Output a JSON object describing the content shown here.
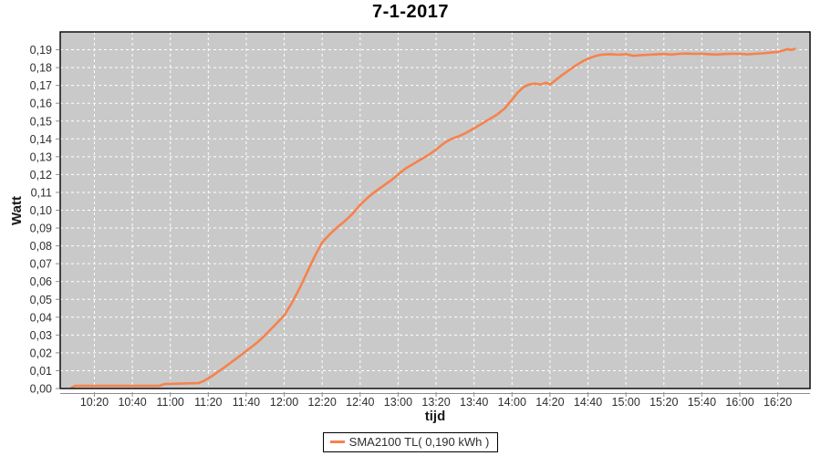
{
  "chart_data": {
    "type": "line",
    "title": "7-1-2017",
    "xlabel": "tijd",
    "ylabel": "Watt",
    "grid": true,
    "legend_position": "bottom",
    "x_ticks": [
      "10:20",
      "10:40",
      "11:00",
      "11:20",
      "11:40",
      "12:00",
      "12:20",
      "12:40",
      "13:00",
      "13:20",
      "13:40",
      "14:00",
      "14:20",
      "14:40",
      "15:00",
      "15:20",
      "15:40",
      "16:00",
      "16:20"
    ],
    "y_ticks": [
      "0,00",
      "0,01",
      "0,02",
      "0,03",
      "0,04",
      "0,05",
      "0,06",
      "0,07",
      "0,08",
      "0,09",
      "0,10",
      "0,11",
      "0,12",
      "0,13",
      "0,14",
      "0,15",
      "0,16",
      "0,17",
      "0,18",
      "0,19"
    ],
    "x_range": [
      "10:02",
      "16:37"
    ],
    "y_range": [
      0,
      0.2
    ],
    "series": [
      {
        "name": "SMA2100 TL( 0,190 kWh )",
        "color": "#F6824C",
        "points": [
          [
            "10:08",
            0.0005
          ],
          [
            "10:10",
            0.0015
          ],
          [
            "10:54",
            0.0015
          ],
          [
            "10:57",
            0.0025
          ],
          [
            "11:15",
            0.003
          ],
          [
            "11:18",
            0.0045
          ],
          [
            "11:22",
            0.007
          ],
          [
            "11:26",
            0.01
          ],
          [
            "11:30",
            0.013
          ],
          [
            "11:35",
            0.017
          ],
          [
            "11:40",
            0.021
          ],
          [
            "11:43",
            0.0235
          ],
          [
            "11:46",
            0.026
          ],
          [
            "11:50",
            0.03
          ],
          [
            "11:55",
            0.0355
          ],
          [
            "12:00",
            0.041
          ],
          [
            "12:04",
            0.048
          ],
          [
            "12:08",
            0.056
          ],
          [
            "12:12",
            0.065
          ],
          [
            "12:16",
            0.074
          ],
          [
            "12:20",
            0.082
          ],
          [
            "12:24",
            0.0865
          ],
          [
            "12:28",
            0.0905
          ],
          [
            "12:32",
            0.094
          ],
          [
            "12:36",
            0.098
          ],
          [
            "12:40",
            0.103
          ],
          [
            "12:44",
            0.107
          ],
          [
            "12:48",
            0.1105
          ],
          [
            "12:52",
            0.1135
          ],
          [
            "12:56",
            0.1165
          ],
          [
            "13:00",
            0.12
          ],
          [
            "13:04",
            0.1235
          ],
          [
            "13:08",
            0.126
          ],
          [
            "13:12",
            0.1285
          ],
          [
            "13:16",
            0.131
          ],
          [
            "13:20",
            0.134
          ],
          [
            "13:24",
            0.1375
          ],
          [
            "13:28",
            0.14
          ],
          [
            "13:32",
            0.1415
          ],
          [
            "13:36",
            0.1435
          ],
          [
            "13:40",
            0.146
          ],
          [
            "13:44",
            0.1485
          ],
          [
            "13:48",
            0.151
          ],
          [
            "13:52",
            0.1535
          ],
          [
            "13:56",
            0.157
          ],
          [
            "14:00",
            0.162
          ],
          [
            "14:03",
            0.166
          ],
          [
            "14:06",
            0.169
          ],
          [
            "14:09",
            0.1705
          ],
          [
            "14:12",
            0.171
          ],
          [
            "14:15",
            0.1705
          ],
          [
            "14:18",
            0.1715
          ],
          [
            "14:20",
            0.1705
          ],
          [
            "14:23",
            0.173
          ],
          [
            "14:26",
            0.1755
          ],
          [
            "14:30",
            0.1785
          ],
          [
            "14:34",
            0.1815
          ],
          [
            "14:38",
            0.184
          ],
          [
            "14:42",
            0.1858
          ],
          [
            "14:45",
            0.1868
          ],
          [
            "14:48",
            0.1873
          ],
          [
            "14:52",
            0.1875
          ],
          [
            "14:56",
            0.1872
          ],
          [
            "15:00",
            0.1875
          ],
          [
            "15:04",
            0.1866
          ],
          [
            "15:08",
            0.187
          ],
          [
            "15:12",
            0.1872
          ],
          [
            "15:16",
            0.1874
          ],
          [
            "15:20",
            0.1876
          ],
          [
            "15:24",
            0.1873
          ],
          [
            "15:28",
            0.1877
          ],
          [
            "15:32",
            0.1879
          ],
          [
            "15:36",
            0.1877
          ],
          [
            "15:40",
            0.1878
          ],
          [
            "15:44",
            0.1875
          ],
          [
            "15:48",
            0.1873
          ],
          [
            "15:52",
            0.1876
          ],
          [
            "15:56",
            0.1878
          ],
          [
            "16:00",
            0.1877
          ],
          [
            "16:04",
            0.1874
          ],
          [
            "16:08",
            0.1877
          ],
          [
            "16:12",
            0.188
          ],
          [
            "16:16",
            0.1884
          ],
          [
            "16:20",
            0.1888
          ],
          [
            "16:23",
            0.1896
          ],
          [
            "16:25",
            0.1904
          ],
          [
            "16:27",
            0.1899
          ],
          [
            "16:29",
            0.1905
          ]
        ]
      }
    ]
  },
  "colors": {
    "plot_bg": "#C9C9C9",
    "grid": "#FFFFFF",
    "plot_border": "#000000",
    "axis": "#8C8C8C",
    "tick_text": "#2E2E2E",
    "accent": "#F6824C"
  }
}
